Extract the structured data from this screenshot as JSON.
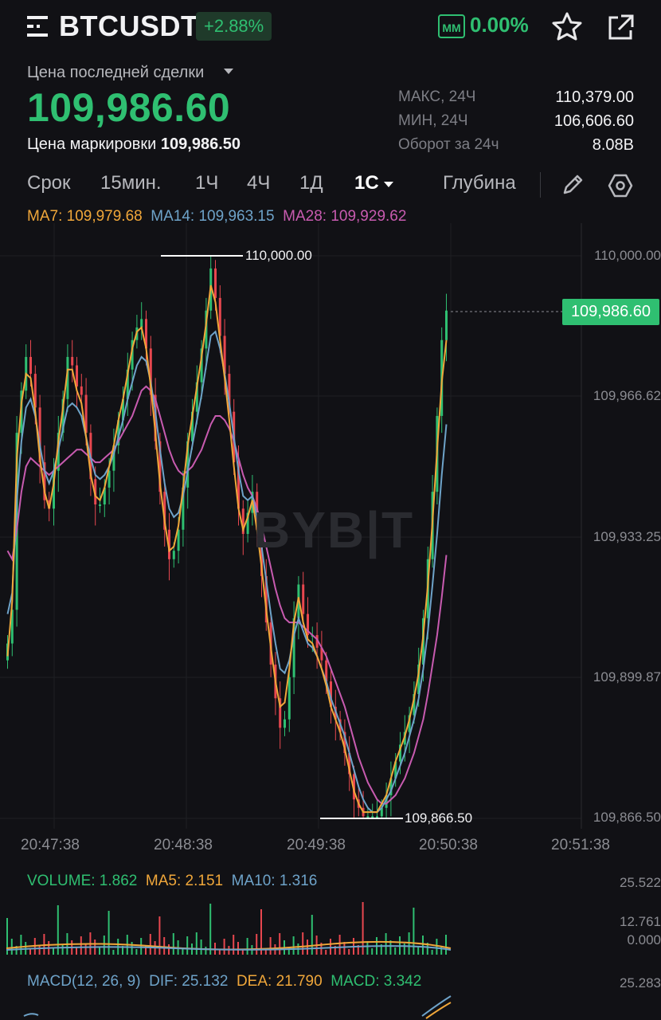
{
  "header": {
    "symbol": "BTCUSDT",
    "change": "+2.88%",
    "mm_label": "MM",
    "mm_value": "0.00%",
    "icons": [
      "menu-icon",
      "star-icon",
      "share-icon"
    ]
  },
  "price_block": {
    "last_price_label": "Цена последней сделки",
    "last_price": "109,986.60",
    "mark_label": "Цена маркировки",
    "mark_value": "109,986.50"
  },
  "stats": [
    {
      "label": "МАКС, 24Ч",
      "value": "110,379.00"
    },
    {
      "label": "МИН, 24Ч",
      "value": "106,606.60"
    },
    {
      "label": "Оборот за 24ч",
      "value": "8.08B"
    }
  ],
  "timeframes": {
    "items": [
      "Срок",
      "15мин.",
      "1Ч",
      "4Ч",
      "1Д",
      "1С"
    ],
    "active": "1С",
    "depth": "Глубина"
  },
  "ma": {
    "ma7": "MA7: 109,979.68",
    "ma14": "MA14: 109,963.15",
    "ma28": "MA28: 109,929.62"
  },
  "price_axis": [
    "110,000.00",
    "109,966.62",
    "109,933.25",
    "109,899.87",
    "109,866.50"
  ],
  "current_price_tag": "109,986.60",
  "high_marker": "110,000.00",
  "low_marker": "109,866.50",
  "time_axis": [
    "20:47:38",
    "20:48:38",
    "20:49:38",
    "20:50:38",
    "20:51:38"
  ],
  "watermark": "BYB|T",
  "volume": {
    "volume": "VOLUME: 1.862",
    "ma5": "MA5: 2.151",
    "ma10": "MA10: 1.316",
    "axis": [
      "25.522",
      "12.761",
      "0.000"
    ]
  },
  "macd": {
    "label": "MACD(12, 26, 9)",
    "dif": "DIF: 25.132",
    "dea": "DEA: 21.790",
    "macd": "MACD: 3.342",
    "axis": "25.283"
  },
  "colors": {
    "up": "#2fbf71",
    "down": "#e8474f",
    "ma7": "#f0a73a",
    "ma14": "#6ea3c9",
    "ma28": "#c85bb0",
    "background": "#111115"
  },
  "chart_data": {
    "type": "candlestick",
    "interval": "1С",
    "ylim": [
      109866.5,
      110000.0
    ],
    "close": [
      109908,
      109916,
      109958,
      109968,
      109976,
      109972,
      109964,
      109951,
      109942,
      109940,
      109949,
      109958,
      109966,
      109976,
      109974,
      109969,
      109967,
      109958,
      109947,
      109941,
      109941,
      109945,
      109949,
      109955,
      109961,
      109966,
      109973,
      109980,
      109983,
      109985,
      109978,
      109967,
      109956,
      109944,
      109935,
      109928,
      109930,
      109935,
      109945,
      109956,
      109963,
      109970,
      109978,
      109987,
      109997,
      109990,
      109981,
      109972,
      109963,
      109951,
      109940,
      109934,
      109939,
      109944,
      109935,
      109924,
      109913,
      109903,
      109895,
      109888,
      109890,
      109900,
      109914,
      109922,
      109915,
      109910,
      109910,
      109907,
      109904,
      109899,
      109893,
      109890,
      109887,
      109882,
      109877,
      109871,
      109869,
      109867,
      109867,
      109867,
      109867,
      109869,
      109872,
      109876,
      109880,
      109884,
      109887,
      109891,
      109896,
      109903,
      109914,
      109928,
      109944,
      109962,
      109980,
      109987
    ],
    "ma7": [
      109905,
      109918,
      109952,
      109965,
      109972,
      109971,
      109963,
      109952,
      109944,
      109940,
      109946,
      109956,
      109964,
      109973,
      109973,
      109968,
      109965,
      109957,
      109948,
      109943,
      109942,
      109945,
      109950,
      109955,
      109961,
      109966,
      109972,
      109978,
      109982,
      109983,
      109978,
      109969,
      109958,
      109946,
      109937,
      109930,
      109931,
      109936,
      109945,
      109955,
      109962,
      109969,
      109976,
      109984,
      109993,
      109989,
      109980,
      109971,
      109961,
      109950,
      109940,
      109935,
      109938,
      109942,
      109935,
      109926,
      109916,
      109907,
      109899,
      109893,
      109894,
      109902,
      109913,
      109919,
      109913,
      109909,
      109908,
      109905,
      109902,
      109898,
      109893,
      109890,
      109887,
      109883,
      109878,
      109873,
      109870,
      109868,
      109868,
      109868,
      109868,
      109870,
      109872,
      109876,
      109880,
      109883,
      109886,
      109890,
      109895,
      109901,
      109910,
      109922,
      109937,
      109954,
      109970,
      109980
    ],
    "ma14": [
      109915,
      109920,
      109942,
      109956,
      109964,
      109966,
      109962,
      109955,
      109949,
      109946,
      109949,
      109954,
      109959,
      109964,
      109965,
      109964,
      109962,
      109957,
      109952,
      109948,
      109947,
      109948,
      109950,
      109953,
      109957,
      109961,
      109966,
      109970,
      109974,
      109976,
      109975,
      109970,
      109963,
      109954,
      109946,
      109940,
      109938,
      109939,
      109943,
      109949,
      109955,
      109961,
      109967,
      109974,
      109981,
      109982,
      109978,
      109972,
      109965,
      109957,
      109949,
      109943,
      109942,
      109943,
      109938,
      109931,
      109923,
      109915,
      109908,
      109902,
      109901,
      109904,
      109910,
      109914,
      109911,
      109908,
      109907,
      109905,
      109902,
      109899,
      109895,
      109892,
      109889,
      109886,
      109882,
      109878,
      109874,
      109871,
      109869,
      109868,
      109868,
      109869,
      109871,
      109873,
      109876,
      109879,
      109882,
      109886,
      109890,
      109895,
      109902,
      109911,
      109922,
      109934,
      109948,
      109960
    ],
    "ma28": [
      109930,
      109928,
      109935,
      109944,
      109950,
      109952,
      109951,
      109950,
      109949,
      109948,
      109949,
      109950,
      109951,
      109952,
      109953,
      109954,
      109954,
      109953,
      109952,
      109951,
      109951,
      109952,
      109953,
      109954,
      109956,
      109958,
      109960,
      109962,
      109965,
      109968,
      109969,
      109968,
      109966,
      109962,
      109958,
      109954,
      109951,
      109949,
      109948,
      109949,
      109950,
      109952,
      109954,
      109957,
      109960,
      109962,
      109962,
      109961,
      109959,
      109956,
      109952,
      109948,
      109945,
      109943,
      109940,
      109936,
      109931,
      109926,
      109921,
      109917,
      109914,
      109913,
      109913,
      109913,
      109912,
      109911,
      109910,
      109909,
      109907,
      109905,
      109902,
      109899,
      109896,
      109893,
      109889,
      109885,
      109881,
      109878,
      109875,
      109873,
      109871,
      109870,
      109870,
      109871,
      109872,
      109874,
      109876,
      109879,
      109882,
      109886,
      109890,
      109896,
      109903,
      109910,
      109919,
      109929
    ]
  }
}
